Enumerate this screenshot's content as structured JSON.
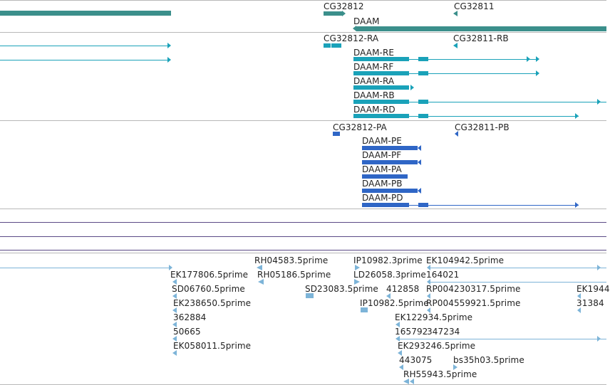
{
  "colors": {
    "gene": "#3b8f8b",
    "transcript": "#1aa2b9",
    "protein": "#2f66c6",
    "est": "#7db4d8",
    "separator": "#b8b8b8",
    "track_line": "#5b4a86"
  },
  "gene_track": {
    "labels": [
      "CG32812",
      "CG32811",
      "DAAM"
    ]
  },
  "transcript_track": {
    "labels": [
      "CG32812-RA",
      "CG32811-RB",
      "DAAM-RE",
      "DAAM-RF",
      "DAAM-RA",
      "DAAM-RB",
      "DAAM-RD"
    ]
  },
  "protein_track": {
    "labels": [
      "CG32812-PA",
      "CG32811-PB",
      "DAAM-PE",
      "DAAM-PF",
      "DAAM-PA",
      "DAAM-PB",
      "DAAM-PD"
    ]
  },
  "est_track": {
    "labels": [
      "RH04583.5prime",
      "IP10982.3prime",
      "EK104942.5prime",
      "EK177806.5prime",
      "RH05186.5prime",
      "LD26058.3prime",
      "164021",
      "SD06760.5prime",
      "SD23083.5prime",
      "412858",
      "RP004230317.5prime",
      "EK1944",
      "EK238650.5prime",
      "IP10982.5prime",
      "RP004559921.5prime",
      "31384",
      "362884",
      "EK122934.5prime",
      "50665",
      "165792",
      "347234",
      "EK058011.5prime",
      "EK293246.5prime",
      "443075",
      "bs35h03.5prime",
      "RH55943.5prime"
    ]
  }
}
